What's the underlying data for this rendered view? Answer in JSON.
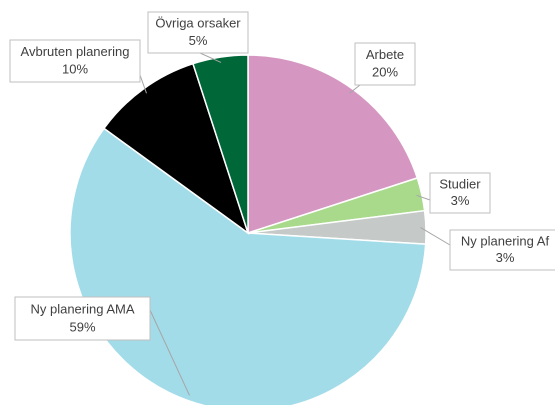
{
  "chart_data": {
    "type": "pie",
    "categories": [
      "Arbete",
      "Studier",
      "Ny planering Af",
      "Ny planering AMA",
      "Avbruten planering",
      "Övriga orsaker"
    ],
    "values": [
      20,
      3,
      3,
      59,
      10,
      5
    ],
    "value_labels": [
      "20%",
      "3%",
      "3%",
      "59%",
      "10%",
      "5%"
    ],
    "colors": [
      "#d597c1",
      "#a9d98b",
      "#c5c9c8",
      "#a3dce9",
      "#000000",
      "#006838"
    ]
  }
}
